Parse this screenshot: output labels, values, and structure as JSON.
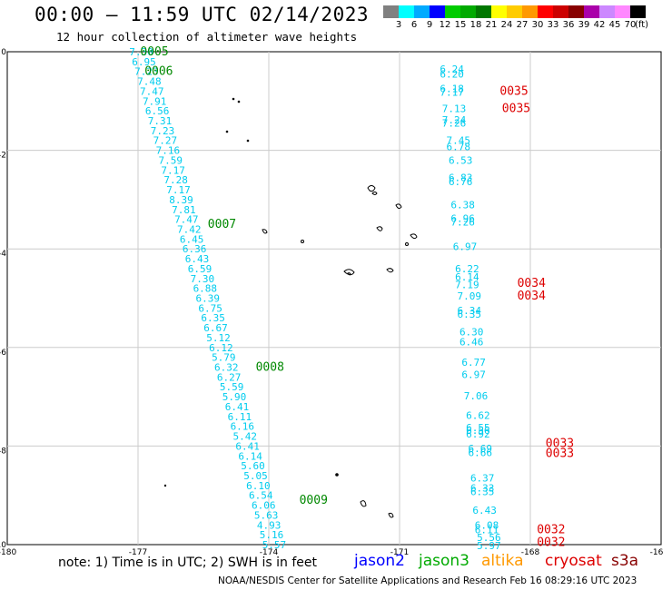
{
  "header": {
    "title": "00:00 – 11:59 UTC 02/14/2023",
    "subtitle": "12 hour collection of altimeter wave heights"
  },
  "color_scale": {
    "colors": [
      "#808080",
      "#00ffff",
      "#00aaff",
      "#0000ff",
      "#00cc00",
      "#00aa00",
      "#007700",
      "#ffff00",
      "#ffcc00",
      "#ff9900",
      "#ff0000",
      "#cc0000",
      "#880000",
      "#aa00aa",
      "#cc88ff",
      "#ff88ff",
      "#000000"
    ],
    "labels": [
      "3",
      "6",
      "9",
      "12",
      "15",
      "18",
      "21",
      "24",
      "27",
      "30",
      "33",
      "36",
      "39",
      "42",
      "45",
      "70",
      "(ft)"
    ]
  },
  "axes": {
    "x_ticks": [
      "-180",
      "-177",
      "-174",
      "-171",
      "-168",
      "-16"
    ],
    "y_ticks": [
      "0",
      "-2",
      "-4",
      "-6",
      "-8",
      "-10"
    ]
  },
  "tracks": [
    {
      "satellite": "altika",
      "pass_labels": [
        {
          "text": "0005",
          "lon": -176.95,
          "lat": 0.0
        },
        {
          "text": "0006",
          "lon": -176.85,
          "lat": -0.4
        },
        {
          "text": "0007",
          "lon": -175.4,
          "lat": -3.5
        },
        {
          "text": "0008",
          "lon": -174.3,
          "lat": -6.4
        },
        {
          "text": "0009",
          "lon": -173.3,
          "lat": -9.1
        }
      ],
      "values": [
        "7.30",
        "6.95",
        "7.23",
        "7.48",
        "7.47",
        "7.91",
        "6.56",
        "7.31",
        "7.23",
        "7.27",
        "7.16",
        "7.59",
        "7.17",
        "7.28",
        "7.17",
        "8.39",
        "7.81",
        "7.47",
        "7.42",
        "6.45",
        "6.36",
        "6.43",
        "6.59",
        "7.30",
        "6.88",
        "6.39",
        "6.75",
        "6.35",
        "6.67",
        "5.12",
        "6.12",
        "5.79",
        "6.32",
        "6.27",
        "5.59",
        "5.90",
        "6.41",
        "6.11",
        "6.16",
        "5.42",
        "6.41",
        "6.14",
        "5.60",
        "5.05",
        "6.10",
        "6.54",
        "6.06",
        "5.63",
        "4.93",
        "5.16",
        "5.57"
      ]
    },
    {
      "satellite": "s3a",
      "pass_labels": [
        {
          "text": "0035",
          "lon": -168.7,
          "lat": -0.8
        },
        {
          "text": "0035",
          "lon": -168.65,
          "lat": -1.15
        },
        {
          "text": "0034",
          "lon": -168.3,
          "lat": -4.7
        },
        {
          "text": "0034",
          "lon": -168.3,
          "lat": -4.95
        },
        {
          "text": "0033",
          "lon": -167.65,
          "lat": -7.95
        },
        {
          "text": "0033",
          "lon": -167.65,
          "lat": -8.15
        },
        {
          "text": "0032",
          "lon": -167.85,
          "lat": -9.7
        },
        {
          "text": "0032",
          "lon": -167.85,
          "lat": -9.95
        }
      ],
      "points": [
        {
          "v": "6.24",
          "lon": -169.8,
          "lat": -0.35
        },
        {
          "v": "6.20",
          "lon": -169.8,
          "lat": -0.45
        },
        {
          "v": "6.18",
          "lon": -169.8,
          "lat": -0.75
        },
        {
          "v": "7.17",
          "lon": -169.8,
          "lat": -0.82
        },
        {
          "v": "7.13",
          "lon": -169.75,
          "lat": -1.15
        },
        {
          "v": "7.24",
          "lon": -169.75,
          "lat": -1.38
        },
        {
          "v": "7.26",
          "lon": -169.75,
          "lat": -1.45
        },
        {
          "v": "7.45",
          "lon": -169.65,
          "lat": -1.8
        },
        {
          "v": "6.78",
          "lon": -169.65,
          "lat": -1.92
        },
        {
          "v": "6.53",
          "lon": -169.6,
          "lat": -2.2
        },
        {
          "v": "6.83",
          "lon": -169.6,
          "lat": -2.55
        },
        {
          "v": "6.76",
          "lon": -169.6,
          "lat": -2.63
        },
        {
          "v": "6.38",
          "lon": -169.55,
          "lat": -3.1
        },
        {
          "v": "6.96",
          "lon": -169.55,
          "lat": -3.38
        },
        {
          "v": "7.26",
          "lon": -169.55,
          "lat": -3.45
        },
        {
          "v": "6.97",
          "lon": -169.5,
          "lat": -3.95
        },
        {
          "v": "6.22",
          "lon": -169.45,
          "lat": -4.4
        },
        {
          "v": "6.14",
          "lon": -169.45,
          "lat": -4.57
        },
        {
          "v": "7.19",
          "lon": -169.45,
          "lat": -4.72
        },
        {
          "v": "7.09",
          "lon": -169.4,
          "lat": -4.95
        },
        {
          "v": "6.34",
          "lon": -169.4,
          "lat": -5.25
        },
        {
          "v": "6.35",
          "lon": -169.4,
          "lat": -5.32
        },
        {
          "v": "6.30",
          "lon": -169.35,
          "lat": -5.68
        },
        {
          "v": "6.46",
          "lon": -169.35,
          "lat": -5.88
        },
        {
          "v": "6.77",
          "lon": -169.3,
          "lat": -6.3
        },
        {
          "v": "6.97",
          "lon": -169.3,
          "lat": -6.55
        },
        {
          "v": "7.06",
          "lon": -169.25,
          "lat": -6.98
        },
        {
          "v": "6.62",
          "lon": -169.2,
          "lat": -7.38
        },
        {
          "v": "6.55",
          "lon": -169.2,
          "lat": -7.62
        },
        {
          "v": "6.56",
          "lon": -169.2,
          "lat": -7.68
        },
        {
          "v": "6.92",
          "lon": -169.2,
          "lat": -7.75
        },
        {
          "v": "6.69",
          "lon": -169.15,
          "lat": -8.05
        },
        {
          "v": "6.66",
          "lon": -169.15,
          "lat": -8.13
        },
        {
          "v": "6.37",
          "lon": -169.1,
          "lat": -8.65
        },
        {
          "v": "6.33",
          "lon": -169.1,
          "lat": -8.85
        },
        {
          "v": "6.35",
          "lon": -169.1,
          "lat": -8.92
        },
        {
          "v": "6.43",
          "lon": -169.05,
          "lat": -9.3
        },
        {
          "v": "6.08",
          "lon": -169.0,
          "lat": -9.6
        },
        {
          "v": "6.11",
          "lon": -169.0,
          "lat": -9.7
        },
        {
          "v": "5.56",
          "lon": -168.95,
          "lat": -9.85
        },
        {
          "v": "5.97",
          "lon": -168.95,
          "lat": -10.02
        }
      ]
    }
  ],
  "footer": {
    "note": "note: 1) Time is in UTC; 2) SWH is in feet",
    "sat_jason2": "jason2",
    "sat_jason3": "jason3",
    "sat_altika": "altika",
    "sat_cryosat": "cryosat",
    "sat_s3a": "s3a",
    "credit": "NOAA/NESDIS Center for Satellite Applications and Research   Feb 16 08:29:16 UTC 2023"
  },
  "colors": {
    "track_value": "#00ccee",
    "altika_label": "#008800",
    "s3a_label": "#dd0000",
    "jason2": "#0000ff",
    "jason3": "#00aa00",
    "altika": "#ff9900",
    "cryosat": "#dd0000",
    "s3a": "#880000"
  }
}
